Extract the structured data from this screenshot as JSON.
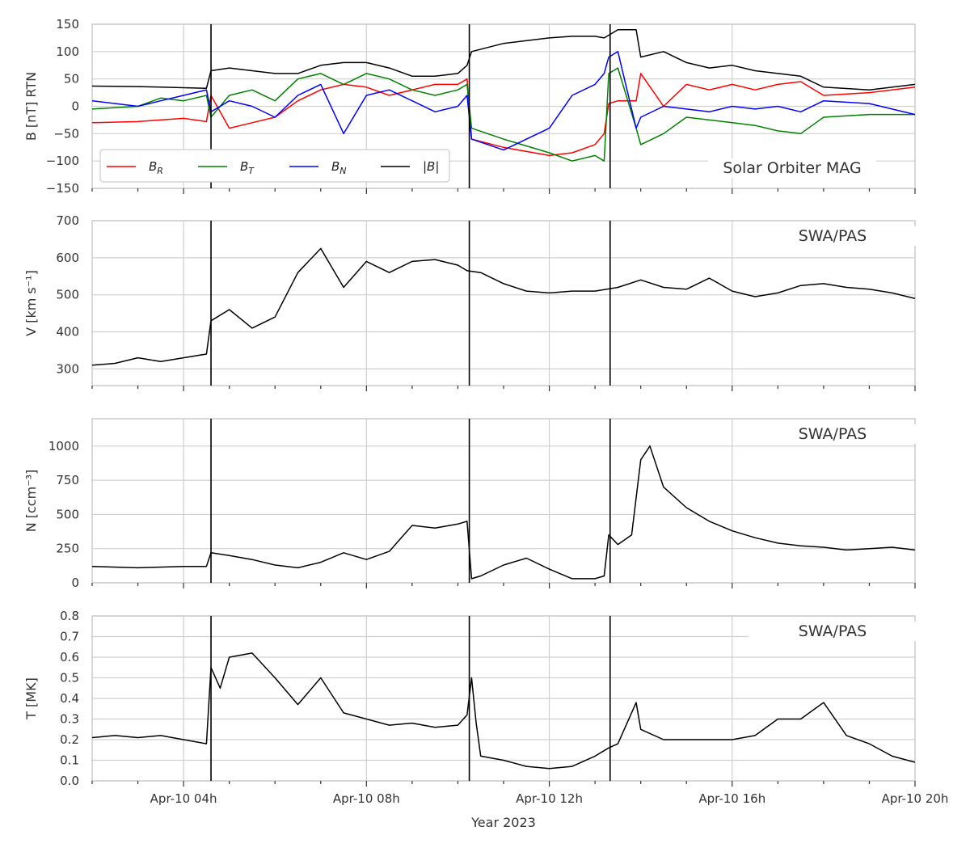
{
  "chart_data": [
    {
      "type": "line",
      "id": "b",
      "ylabel": "B [nT] RTN",
      "ylim": [
        -150,
        150
      ],
      "yticks": [
        -150,
        -100,
        -50,
        0,
        50,
        100,
        150
      ],
      "annotation": "Solar Orbiter MAG",
      "legend": [
        "B_R",
        "B_T",
        "B_N",
        "|B|"
      ],
      "series": [
        {
          "name": "B_R",
          "color": "#ff0000",
          "x": [
            2,
            3,
            3.5,
            4,
            4.5,
            4.6,
            5,
            5.5,
            6,
            6.5,
            7,
            7.5,
            8,
            8.5,
            9,
            9.5,
            10,
            10.2,
            10.3,
            11,
            12,
            12.5,
            13,
            13.2,
            13.3,
            13.5,
            13.9,
            14,
            14.5,
            15,
            15.5,
            16,
            16.5,
            17,
            17.5,
            18,
            19,
            20
          ],
          "y": [
            -30,
            -28,
            -25,
            -22,
            -28,
            20,
            -40,
            -30,
            -20,
            10,
            30,
            40,
            35,
            20,
            30,
            40,
            40,
            50,
            -60,
            -75,
            -90,
            -85,
            -70,
            -50,
            5,
            10,
            10,
            60,
            0,
            40,
            30,
            40,
            30,
            40,
            45,
            20,
            25,
            35
          ]
        },
        {
          "name": "B_T",
          "color": "#008000",
          "x": [
            2,
            3,
            3.5,
            4,
            4.5,
            4.6,
            5,
            5.5,
            6,
            6.5,
            7,
            7.5,
            8,
            8.5,
            9,
            9.5,
            10,
            10.2,
            10.3,
            11,
            12,
            12.5,
            13,
            13.2,
            13.3,
            13.5,
            13.9,
            14,
            14.5,
            15,
            15.5,
            16,
            16.5,
            17,
            17.5,
            18,
            19,
            20
          ],
          "y": [
            -5,
            0,
            15,
            10,
            20,
            -20,
            20,
            30,
            10,
            50,
            60,
            40,
            60,
            50,
            30,
            20,
            30,
            40,
            -40,
            -60,
            -85,
            -100,
            -90,
            -100,
            60,
            70,
            -40,
            -70,
            -50,
            -20,
            -25,
            -30,
            -35,
            -45,
            -50,
            -20,
            -15,
            -15
          ]
        },
        {
          "name": "B_N",
          "color": "#0000ff",
          "x": [
            2,
            3,
            3.5,
            4,
            4.5,
            4.6,
            5,
            5.5,
            6,
            6.5,
            7,
            7.5,
            8,
            8.5,
            9,
            9.5,
            10,
            10.2,
            10.3,
            11,
            12,
            12.5,
            13,
            13.2,
            13.3,
            13.5,
            13.9,
            14,
            14.5,
            15,
            15.5,
            16,
            16.5,
            17,
            17.5,
            18,
            19,
            20
          ],
          "y": [
            10,
            0,
            10,
            20,
            30,
            -10,
            10,
            0,
            -20,
            20,
            40,
            -50,
            20,
            30,
            10,
            -10,
            0,
            20,
            -60,
            -80,
            -40,
            20,
            40,
            60,
            90,
            100,
            -40,
            -20,
            0,
            -5,
            -10,
            0,
            -5,
            0,
            -10,
            10,
            5,
            -15
          ]
        },
        {
          "name": "|B|",
          "color": "#000000",
          "x": [
            2,
            3,
            3.5,
            4,
            4.5,
            4.6,
            5,
            5.5,
            6,
            6.5,
            7,
            7.5,
            8,
            8.5,
            9,
            9.5,
            10,
            10.2,
            10.3,
            11,
            12,
            12.5,
            13,
            13.2,
            13.3,
            13.5,
            13.9,
            14,
            14.5,
            15,
            15.5,
            16,
            16.5,
            17,
            17.5,
            18,
            19,
            20
          ],
          "y": [
            37,
            36,
            35,
            34,
            33,
            65,
            70,
            65,
            60,
            60,
            75,
            80,
            80,
            70,
            55,
            55,
            60,
            75,
            100,
            115,
            125,
            128,
            128,
            125,
            130,
            140,
            140,
            90,
            100,
            80,
            70,
            75,
            65,
            60,
            55,
            35,
            30,
            40
          ]
        }
      ]
    },
    {
      "type": "line",
      "id": "v",
      "ylabel": "V [km s⁻¹]",
      "ylim": [
        255,
        700
      ],
      "yticks": [
        300,
        400,
        500,
        600,
        700
      ],
      "annotation": "SWA/PAS",
      "series": [
        {
          "name": "V",
          "color": "#000000",
          "x": [
            2,
            2.5,
            3,
            3.5,
            4,
            4.5,
            4.6,
            5,
            5.5,
            6,
            6.5,
            7,
            7.5,
            8,
            8.5,
            9,
            9.5,
            10,
            10.2,
            10.5,
            11,
            11.5,
            12,
            12.5,
            13,
            13.5,
            14,
            14.5,
            15,
            15.5,
            16,
            16.5,
            17,
            17.5,
            18,
            18.5,
            19,
            19.5,
            20
          ],
          "y": [
            310,
            315,
            330,
            320,
            330,
            340,
            430,
            460,
            410,
            440,
            560,
            625,
            520,
            590,
            560,
            590,
            595,
            580,
            565,
            560,
            530,
            510,
            505,
            510,
            510,
            520,
            540,
            520,
            515,
            545,
            510,
            495,
            505,
            525,
            530,
            520,
            515,
            505,
            490
          ]
        }
      ]
    },
    {
      "type": "line",
      "id": "n",
      "ylabel": "N [ccm⁻³]",
      "ylim": [
        0,
        1200
      ],
      "yticks": [
        0,
        250,
        500,
        750,
        1000
      ],
      "annotation": "SWA/PAS",
      "series": [
        {
          "name": "N",
          "color": "#000000",
          "x": [
            2,
            3,
            4,
            4.5,
            4.6,
            5,
            5.5,
            6,
            6.5,
            7,
            7.5,
            8,
            8.5,
            9,
            9.5,
            10,
            10.2,
            10.3,
            10.5,
            11,
            11.5,
            12,
            12.5,
            13,
            13.2,
            13.3,
            13.5,
            13.8,
            14,
            14.2,
            14.5,
            15,
            15.5,
            16,
            16.5,
            17,
            17.5,
            18,
            18.5,
            19,
            19.5,
            20
          ],
          "y": [
            120,
            110,
            120,
            120,
            220,
            200,
            170,
            130,
            110,
            150,
            220,
            170,
            230,
            420,
            400,
            430,
            450,
            30,
            50,
            130,
            180,
            100,
            30,
            30,
            50,
            350,
            280,
            350,
            900,
            1000,
            700,
            550,
            450,
            380,
            330,
            290,
            270,
            260,
            240,
            250,
            260,
            240
          ]
        }
      ]
    },
    {
      "type": "line",
      "id": "t",
      "ylabel": "T [MK]",
      "ylim": [
        0,
        0.8
      ],
      "yticks": [
        0.0,
        0.1,
        0.2,
        0.3,
        0.4,
        0.5,
        0.6,
        0.7,
        0.8
      ],
      "xticklabels": [
        "Apr-10 04h",
        "Apr-10 08h",
        "Apr-10 12h",
        "Apr-10 16h",
        "Apr-10 20h"
      ],
      "xticks": [
        4,
        8,
        12,
        16,
        20
      ],
      "xlabel": "Year 2023",
      "annotation": "SWA/PAS",
      "series": [
        {
          "name": "T",
          "color": "#000000",
          "x": [
            2,
            2.5,
            3,
            3.5,
            4,
            4.5,
            4.6,
            4.8,
            5,
            5.5,
            6,
            6.5,
            7,
            7.5,
            8,
            8.5,
            9,
            9.5,
            10,
            10.2,
            10.3,
            10.4,
            10.5,
            11,
            11.5,
            12,
            12.5,
            13,
            13.3,
            13.5,
            13.9,
            14,
            14.5,
            15,
            15.5,
            16,
            16.5,
            17,
            17.5,
            18,
            18.5,
            19,
            19.5,
            20
          ],
          "y": [
            0.21,
            0.22,
            0.21,
            0.22,
            0.2,
            0.18,
            0.55,
            0.45,
            0.6,
            0.62,
            0.5,
            0.37,
            0.5,
            0.33,
            0.3,
            0.27,
            0.28,
            0.26,
            0.27,
            0.32,
            0.5,
            0.28,
            0.12,
            0.1,
            0.07,
            0.06,
            0.07,
            0.12,
            0.16,
            0.18,
            0.38,
            0.25,
            0.2,
            0.2,
            0.2,
            0.2,
            0.22,
            0.3,
            0.3,
            0.38,
            0.22,
            0.18,
            0.12,
            0.09
          ]
        }
      ]
    }
  ],
  "vlines": [
    4.6,
    10.25,
    13.33
  ],
  "xrange": [
    2,
    20
  ]
}
